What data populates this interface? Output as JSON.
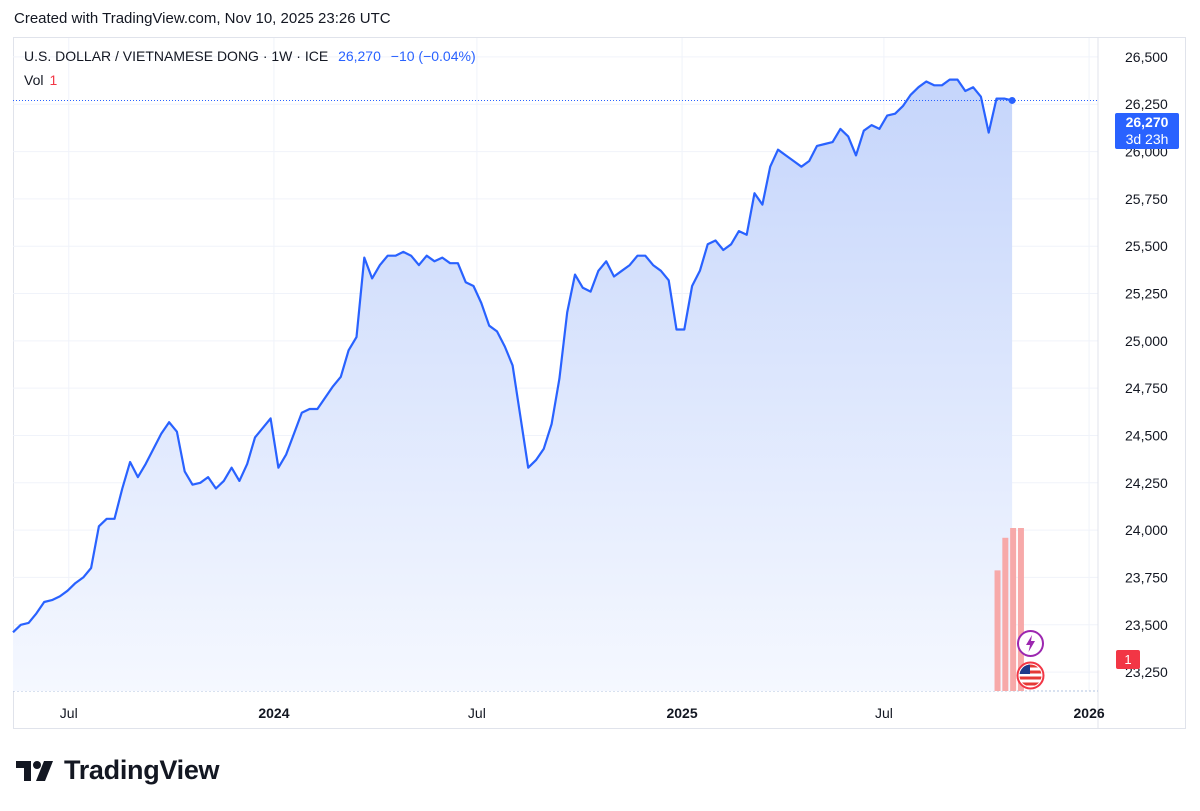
{
  "caption": "Created with TradingView.com, Nov 10, 2025 23:26 UTC",
  "legend": {
    "symbol": "U.S. DOLLAR / VIETNAMESE DONG · 1W · ICE",
    "price": "26,270",
    "change": "−10 (−0.04%)",
    "vol_label": "Vol",
    "vol_value": "1"
  },
  "price_tag": {
    "price": "26,270",
    "countdown": "3d 23h"
  },
  "vol_tag": "1",
  "brand": "TradingView",
  "colors": {
    "line": "#2962ff",
    "fill_top": "#c7d6fb",
    "fill_bottom": "#f4f7ff",
    "volume": "#f7a9a9",
    "grid": "#eef0f4"
  },
  "icons": [
    "lightning-event-icon",
    "us-flag-event-icon",
    "tradingview-logo-icon"
  ],
  "chart_data": {
    "type": "area",
    "title": "U.S. DOLLAR / VIETNAMESE DONG · 1W · ICE",
    "xlabel": "",
    "ylabel": "",
    "ylim": [
      23150,
      26600
    ],
    "y_ticks": [
      23250,
      23500,
      23750,
      24000,
      24250,
      24500,
      24750,
      25000,
      25250,
      25500,
      25750,
      26000,
      26250,
      26500
    ],
    "y_tick_labels": [
      "23,250",
      "23,500",
      "23,750",
      "24,000",
      "24,250",
      "24,500",
      "24,750",
      "25,000",
      "25,250",
      "25,500",
      "25,750",
      "26,000",
      "26,250",
      "26,500"
    ],
    "x_range": [
      "2023-05-12",
      "2026-01-09"
    ],
    "x_ticks": [
      {
        "date": "2023-07-01",
        "label": "Jul",
        "bold": false
      },
      {
        "date": "2024-01-01",
        "label": "2024",
        "bold": true
      },
      {
        "date": "2024-07-01",
        "label": "Jul",
        "bold": false
      },
      {
        "date": "2025-01-01",
        "label": "2025",
        "bold": true
      },
      {
        "date": "2025-07-01",
        "label": "Jul",
        "bold": false
      },
      {
        "date": "2026-01-01",
        "label": "2026",
        "bold": true
      }
    ],
    "series": [
      {
        "name": "U.S. DOLLAR / VIETNAMESE DONG",
        "points": [
          [
            "2023-05-12",
            23460
          ],
          [
            "2023-05-19",
            23500
          ],
          [
            "2023-05-26",
            23510
          ],
          [
            "2023-06-02",
            23560
          ],
          [
            "2023-06-09",
            23620
          ],
          [
            "2023-06-16",
            23630
          ],
          [
            "2023-06-23",
            23650
          ],
          [
            "2023-06-30",
            23680
          ],
          [
            "2023-07-07",
            23720
          ],
          [
            "2023-07-14",
            23750
          ],
          [
            "2023-07-21",
            23800
          ],
          [
            "2023-07-28",
            24020
          ],
          [
            "2023-08-04",
            24060
          ],
          [
            "2023-08-11",
            24060
          ],
          [
            "2023-08-18",
            24220
          ],
          [
            "2023-08-25",
            24360
          ],
          [
            "2023-09-01",
            24280
          ],
          [
            "2023-09-08",
            24350
          ],
          [
            "2023-09-15",
            24430
          ],
          [
            "2023-09-22",
            24510
          ],
          [
            "2023-09-29",
            24570
          ],
          [
            "2023-10-06",
            24520
          ],
          [
            "2023-10-13",
            24310
          ],
          [
            "2023-10-20",
            24240
          ],
          [
            "2023-10-27",
            24250
          ],
          [
            "2023-11-03",
            24280
          ],
          [
            "2023-11-10",
            24220
          ],
          [
            "2023-11-17",
            24260
          ],
          [
            "2023-11-24",
            24330
          ],
          [
            "2023-12-01",
            24260
          ],
          [
            "2023-12-08",
            24350
          ],
          [
            "2023-12-15",
            24490
          ],
          [
            "2023-12-22",
            24540
          ],
          [
            "2023-12-29",
            24590
          ],
          [
            "2024-01-05",
            24330
          ],
          [
            "2024-01-12",
            24400
          ],
          [
            "2024-01-19",
            24510
          ],
          [
            "2024-01-26",
            24620
          ],
          [
            "2024-02-02",
            24640
          ],
          [
            "2024-02-09",
            24640
          ],
          [
            "2024-02-16",
            24700
          ],
          [
            "2024-02-23",
            24760
          ],
          [
            "2024-03-01",
            24810
          ],
          [
            "2024-03-08",
            24950
          ],
          [
            "2024-03-15",
            25020
          ],
          [
            "2024-03-22",
            25440
          ],
          [
            "2024-03-29",
            25330
          ],
          [
            "2024-04-05",
            25400
          ],
          [
            "2024-04-12",
            25450
          ],
          [
            "2024-04-19",
            25450
          ],
          [
            "2024-04-26",
            25470
          ],
          [
            "2024-05-03",
            25450
          ],
          [
            "2024-05-10",
            25400
          ],
          [
            "2024-05-17",
            25450
          ],
          [
            "2024-05-24",
            25420
          ],
          [
            "2024-05-31",
            25440
          ],
          [
            "2024-06-07",
            25410
          ],
          [
            "2024-06-14",
            25410
          ],
          [
            "2024-06-21",
            25310
          ],
          [
            "2024-06-28",
            25290
          ],
          [
            "2024-07-05",
            25200
          ],
          [
            "2024-07-12",
            25080
          ],
          [
            "2024-07-19",
            25050
          ],
          [
            "2024-07-26",
            24970
          ],
          [
            "2024-08-02",
            24870
          ],
          [
            "2024-08-09",
            24600
          ],
          [
            "2024-08-16",
            24330
          ],
          [
            "2024-08-23",
            24370
          ],
          [
            "2024-08-30",
            24430
          ],
          [
            "2024-09-06",
            24560
          ],
          [
            "2024-09-13",
            24800
          ],
          [
            "2024-09-20",
            25150
          ],
          [
            "2024-09-27",
            25350
          ],
          [
            "2024-10-04",
            25280
          ],
          [
            "2024-10-11",
            25260
          ],
          [
            "2024-10-18",
            25370
          ],
          [
            "2024-10-25",
            25420
          ],
          [
            "2024-11-01",
            25340
          ],
          [
            "2024-11-08",
            25370
          ],
          [
            "2024-11-15",
            25400
          ],
          [
            "2024-11-22",
            25450
          ],
          [
            "2024-11-29",
            25450
          ],
          [
            "2024-12-06",
            25400
          ],
          [
            "2024-12-13",
            25370
          ],
          [
            "2024-12-20",
            25320
          ],
          [
            "2024-12-27",
            25060
          ],
          [
            "2025-01-03",
            25060
          ],
          [
            "2025-01-10",
            25290
          ],
          [
            "2025-01-17",
            25370
          ],
          [
            "2025-01-24",
            25510
          ],
          [
            "2025-01-31",
            25530
          ],
          [
            "2025-02-07",
            25480
          ],
          [
            "2025-02-14",
            25510
          ],
          [
            "2025-02-21",
            25580
          ],
          [
            "2025-02-28",
            25560
          ],
          [
            "2025-03-07",
            25780
          ],
          [
            "2025-03-14",
            25720
          ],
          [
            "2025-03-21",
            25920
          ],
          [
            "2025-03-28",
            26010
          ],
          [
            "2025-04-04",
            25980
          ],
          [
            "2025-04-11",
            25950
          ],
          [
            "2025-04-18",
            25920
          ],
          [
            "2025-04-25",
            25950
          ],
          [
            "2025-05-02",
            26030
          ],
          [
            "2025-05-09",
            26040
          ],
          [
            "2025-05-16",
            26050
          ],
          [
            "2025-05-23",
            26120
          ],
          [
            "2025-05-30",
            26080
          ],
          [
            "2025-06-06",
            25980
          ],
          [
            "2025-06-13",
            26110
          ],
          [
            "2025-06-20",
            26140
          ],
          [
            "2025-06-27",
            26120
          ],
          [
            "2025-07-04",
            26190
          ],
          [
            "2025-07-11",
            26200
          ],
          [
            "2025-07-18",
            26240
          ],
          [
            "2025-07-25",
            26300
          ],
          [
            "2025-08-01",
            26340
          ],
          [
            "2025-08-08",
            26370
          ],
          [
            "2025-08-15",
            26350
          ],
          [
            "2025-08-22",
            26350
          ],
          [
            "2025-08-29",
            26380
          ],
          [
            "2025-09-05",
            26380
          ],
          [
            "2025-09-12",
            26320
          ],
          [
            "2025-09-19",
            26340
          ],
          [
            "2025-09-26",
            26290
          ],
          [
            "2025-10-03",
            26100
          ],
          [
            "2025-10-10",
            26280
          ],
          [
            "2025-10-17",
            26280
          ],
          [
            "2025-10-24",
            26270
          ]
        ]
      }
    ],
    "volume": [
      [
        "2025-10-10",
        1
      ],
      [
        "2025-10-17",
        1
      ],
      [
        "2025-10-24",
        1
      ],
      [
        "2025-10-31",
        1
      ]
    ],
    "volume_levels": [
      0.74,
      0.94,
      1.0,
      1.0
    ],
    "last_price": 26270,
    "grid": true,
    "legend_position": "top-left"
  }
}
